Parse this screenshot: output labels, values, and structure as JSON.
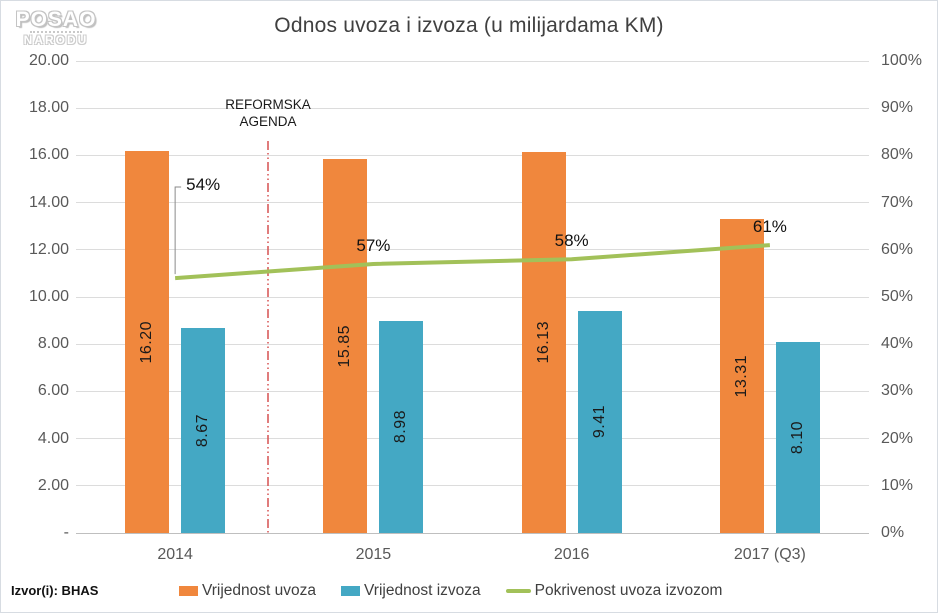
{
  "logo": {
    "line1": "POSAO",
    "line2": "NARODU"
  },
  "title": "Odnos uvoza i izvoza (u milijardama KM)",
  "source": "Izvor(i): BHAS",
  "annotation": {
    "line1": "REFORMSKA",
    "line2": "AGENDA",
    "line_color": "#d95b5b"
  },
  "chart_data": {
    "type": "bar",
    "subtype": "combo-bar-line-dual-axis",
    "title": "Odnos uvoza i izvoza (u milijardama KM)",
    "categories": [
      "2014",
      "2015",
      "2016",
      "2017 (Q3)"
    ],
    "bar_series": [
      {
        "name": "Vrijednost uvoza",
        "color": "#f0873d",
        "values": [
          16.2,
          15.85,
          16.13,
          13.31
        ],
        "labels": [
          "16.20",
          "15.85",
          "16.13",
          "13.31"
        ]
      },
      {
        "name": "Vrijednost izvoza",
        "color": "#44a8c4",
        "values": [
          8.67,
          8.98,
          9.41,
          8.1
        ],
        "labels": [
          "8.67",
          "8.98",
          "9.41",
          "8.10"
        ]
      }
    ],
    "line_series": {
      "name": "Pokrivenost uvoza izvozom",
      "color": "#a2c159",
      "values_percent": [
        54,
        57,
        58,
        61
      ],
      "labels": [
        "54%",
        "57%",
        "58%",
        "61%"
      ]
    },
    "left_axis": {
      "min": 0,
      "max": 20,
      "ticks": [
        "20.00",
        "18.00",
        "16.00",
        "14.00",
        "12.00",
        "10.00",
        "8.00",
        "6.00",
        "4.00",
        "2.00",
        "-"
      ]
    },
    "right_axis": {
      "min_label": "0%",
      "max_label": "100%",
      "ticks": [
        "100%",
        "90%",
        "80%",
        "70%",
        "60%",
        "50%",
        "40%",
        "30%",
        "20%",
        "10%",
        "0%"
      ]
    },
    "grid": "horizontal",
    "legend_position": "bottom",
    "vertical_marker": {
      "label": "REFORMSKA AGENDA",
      "between": [
        "2014",
        "2015"
      ],
      "style": "dash-dot",
      "color": "#d95b5b"
    }
  }
}
